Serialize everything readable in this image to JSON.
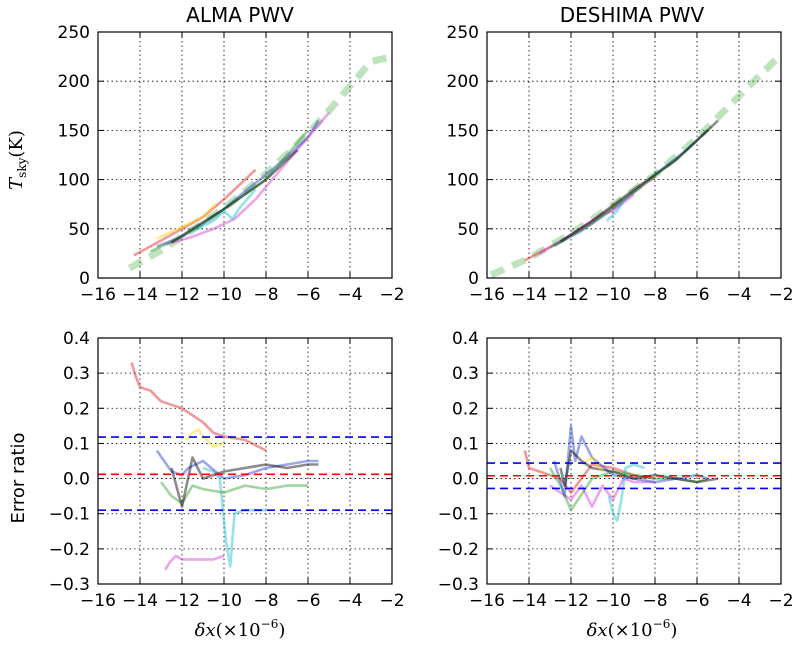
{
  "chart_data": [
    {
      "type": "line",
      "panel": "top-left",
      "title": "ALMA PWV",
      "ylabel": "T_sky (K)",
      "xlabel": "",
      "xlim": [
        -16,
        -2
      ],
      "ylim": [
        0,
        250
      ],
      "xticks": [
        "−16",
        "−14",
        "−12",
        "−10",
        "−8",
        "−6",
        "−4",
        "−2"
      ],
      "yticks": [
        "0",
        "50",
        "100",
        "150",
        "200",
        "250"
      ],
      "grid": true,
      "reference_curve": {
        "color": "#2ca02c",
        "style": "dashed",
        "x": [
          -14.5,
          -13,
          -12,
          -11,
          -10,
          -9,
          -8,
          -7,
          -6,
          -5,
          -4,
          -3,
          -2
        ],
        "y": [
          10,
          28,
          42,
          56,
          71,
          88,
          106,
          126,
          147,
          170,
          195,
          220,
          225
        ]
      },
      "series": [
        {
          "color": "#e31a1c",
          "x": [
            -14.3,
            -13,
            -12,
            -11,
            -10,
            -8.5
          ],
          "y": [
            23,
            38,
            50,
            62,
            80,
            110
          ]
        },
        {
          "color": "#1f3dcc",
          "x": [
            -13.2,
            -12,
            -11,
            -10,
            -9,
            -8,
            -7,
            -6,
            -5.5
          ],
          "y": [
            32,
            42,
            55,
            70,
            88,
            105,
            123,
            143,
            160
          ]
        },
        {
          "color": "#d438d4",
          "x": [
            -12.8,
            -11.5,
            -10.5,
            -9.5,
            -8.5,
            -7,
            -5
          ],
          "y": [
            34,
            42,
            50,
            60,
            80,
            118,
            168
          ]
        },
        {
          "color": "#17becf",
          "x": [
            -11.5,
            -10.5,
            -10,
            -9.6,
            -9.3,
            -8.5
          ],
          "y": [
            48,
            58,
            68,
            60,
            70,
            90
          ]
        },
        {
          "color": "#ffd700",
          "x": [
            -13.2,
            -12,
            -11,
            -10.4
          ],
          "y": [
            40,
            52,
            62,
            75
          ]
        },
        {
          "color": "#2ca02c",
          "x": [
            -13.5,
            -12,
            -10,
            -8,
            -6
          ],
          "y": [
            27,
            42,
            70,
            100,
            150
          ]
        },
        {
          "color": "#000000",
          "x": [
            -12.5,
            -11.5,
            -10,
            -8,
            -6.5
          ],
          "y": [
            36,
            50,
            70,
            100,
            130
          ]
        }
      ]
    },
    {
      "type": "line",
      "panel": "top-right",
      "title": "DESHIMA PWV",
      "xlabel": "",
      "ylabel": "",
      "xlim": [
        -16,
        -2
      ],
      "ylim": [
        0,
        250
      ],
      "xticks": [
        "−16",
        "−14",
        "−12",
        "−10",
        "−8",
        "−6",
        "−4",
        "−2"
      ],
      "yticks": [
        "0",
        "50",
        "100",
        "150",
        "200",
        "250"
      ],
      "grid": true,
      "reference_curve": {
        "color": "#2ca02c",
        "style": "dashed",
        "x": [
          -15.8,
          -14,
          -12,
          -10,
          -8,
          -6,
          -4,
          -2
        ],
        "y": [
          3,
          20,
          45,
          74,
          105,
          142,
          185,
          227
        ]
      },
      "series": [
        {
          "color": "#e31a1c",
          "x": [
            -14.2,
            -12.5,
            -11,
            -9.5,
            -8
          ],
          "y": [
            18,
            37,
            57,
            80,
            103
          ]
        },
        {
          "color": "#1f3dcc",
          "x": [
            -12.8,
            -11.5,
            -10,
            -8,
            -6.5,
            -5.5
          ],
          "y": [
            33,
            48,
            70,
            105,
            130,
            150
          ]
        },
        {
          "color": "#d438d4",
          "x": [
            -13.5,
            -12,
            -10.5,
            -10,
            -9
          ],
          "y": [
            25,
            44,
            65,
            68,
            85
          ]
        },
        {
          "color": "#17becf",
          "x": [
            -10.3,
            -9.8,
            -9.4
          ],
          "y": [
            58,
            68,
            82
          ]
        },
        {
          "color": "#2ca02c",
          "x": [
            -13,
            -11,
            -9,
            -7,
            -5.5
          ],
          "y": [
            31,
            55,
            88,
            120,
            150
          ]
        },
        {
          "color": "#000000",
          "x": [
            -12.5,
            -11,
            -9,
            -7,
            -5
          ],
          "y": [
            37,
            58,
            90,
            120,
            160
          ]
        }
      ]
    },
    {
      "type": "line",
      "panel": "bottom-left",
      "title": "",
      "ylabel": "Error ratio",
      "xlabel": "δx (×10⁻⁶)",
      "xlim": [
        -16,
        -2
      ],
      "ylim": [
        -0.3,
        0.4
      ],
      "xticks": [
        "−16",
        "−14",
        "−12",
        "−10",
        "−8",
        "−6",
        "−4",
        "−2"
      ],
      "yticks": [
        "−0.3",
        "−0.2",
        "−0.1",
        "0.0",
        "0.1",
        "0.2",
        "0.3",
        "0.4"
      ],
      "grid": true,
      "hlines": [
        {
          "y": 0.118,
          "color": "#0000ff"
        },
        {
          "y": 0.012,
          "color": "#ff0000"
        },
        {
          "y": -0.09,
          "color": "#0000ff"
        }
      ],
      "series": [
        {
          "color": "#e31a1c",
          "x": [
            -14.4,
            -14.2,
            -14,
            -13.5,
            -13,
            -12.5,
            -12,
            -11.5,
            -11,
            -10.5,
            -10,
            -9,
            -8
          ],
          "y": [
            0.33,
            0.29,
            0.26,
            0.25,
            0.22,
            0.21,
            0.2,
            0.18,
            0.16,
            0.13,
            0.12,
            0.11,
            0.08
          ]
        },
        {
          "color": "#ffd700",
          "x": [
            -11.8,
            -11.5,
            -11.2,
            -11,
            -10.5,
            -10
          ],
          "y": [
            0.11,
            0.13,
            0.14,
            0.12,
            0.09,
            0.1
          ]
        },
        {
          "color": "#d438d4",
          "x": [
            -12.8,
            -12.6,
            -12.3,
            -12,
            -11,
            -10.5,
            -10
          ],
          "y": [
            -0.26,
            -0.24,
            -0.22,
            -0.23,
            -0.23,
            -0.23,
            -0.22
          ]
        },
        {
          "color": "#17becf",
          "x": [
            -11,
            -10.5,
            -10.2,
            -9.9,
            -9.7,
            -9.5,
            -9,
            -8
          ],
          "y": [
            0.03,
            0.02,
            0.0,
            -0.18,
            -0.25,
            -0.1,
            -0.09,
            -0.09
          ]
        },
        {
          "color": "#2ca02c",
          "x": [
            -13,
            -12.5,
            -12,
            -11.5,
            -11,
            -10,
            -9,
            -8,
            -7,
            -6
          ],
          "y": [
            -0.01,
            -0.05,
            -0.07,
            -0.02,
            -0.03,
            -0.04,
            -0.02,
            -0.03,
            -0.02,
            -0.02
          ]
        },
        {
          "color": "#1f3dcc",
          "x": [
            -13.2,
            -12.5,
            -12,
            -11.7,
            -11,
            -10,
            -9,
            -8,
            -7,
            -6,
            -5.5
          ],
          "y": [
            0.08,
            0.02,
            0.01,
            0.03,
            0.05,
            0.0,
            0.01,
            0.03,
            0.04,
            0.05,
            0.05
          ]
        },
        {
          "color": "#000000",
          "x": [
            -12.5,
            -12,
            -11.5,
            -11,
            -10,
            -9,
            -8,
            -7,
            -6,
            -5.5
          ],
          "y": [
            0.03,
            -0.08,
            0.06,
            0.0,
            0.02,
            0.03,
            0.04,
            0.03,
            0.04,
            0.04
          ]
        }
      ]
    },
    {
      "type": "line",
      "panel": "bottom-right",
      "title": "",
      "ylabel": "",
      "xlabel": "δx (×10⁻⁶)",
      "xlim": [
        -16,
        -2
      ],
      "ylim": [
        -0.3,
        0.4
      ],
      "xticks": [
        "−16",
        "−14",
        "−12",
        "−10",
        "−8",
        "−6",
        "−4",
        "−2"
      ],
      "yticks": [
        "−0.3",
        "−0.2",
        "−0.1",
        "0.0",
        "0.1",
        "0.2",
        "0.3",
        "0.4"
      ],
      "grid": true,
      "hlines": [
        {
          "y": 0.044,
          "color": "#0000ff"
        },
        {
          "y": 0.008,
          "color": "#ff0000"
        },
        {
          "y": -0.028,
          "color": "#0000ff"
        }
      ],
      "series": [
        {
          "color": "#e31a1c",
          "x": [
            -14.2,
            -14,
            -13.5,
            -13,
            -12.5,
            -12,
            -11,
            -10,
            -9,
            -8
          ],
          "y": [
            0.08,
            0.03,
            0.02,
            0.01,
            0.0,
            -0.04,
            0.04,
            0.03,
            0.01,
            0.0
          ]
        },
        {
          "color": "#d438d4",
          "x": [
            -13,
            -12.5,
            -12,
            -11.5,
            -11,
            -10.5,
            -10,
            -9.5,
            -9,
            -8
          ],
          "y": [
            -0.02,
            -0.04,
            -0.06,
            -0.02,
            -0.08,
            -0.02,
            -0.06,
            0.0,
            -0.01,
            -0.01
          ]
        },
        {
          "color": "#17becf",
          "x": [
            -10.2,
            -10,
            -9.8,
            -9.6,
            -9.4,
            -9,
            -8.5
          ],
          "y": [
            -0.05,
            -0.1,
            -0.12,
            -0.06,
            0.03,
            0.04,
            0.03
          ]
        },
        {
          "color": "#2ca02c",
          "x": [
            -13,
            -12.5,
            -12,
            -11,
            -10,
            -9,
            -8,
            -7,
            -6,
            -5.5
          ],
          "y": [
            0.03,
            -0.02,
            -0.09,
            0.0,
            0.02,
            0.01,
            0.0,
            0.0,
            -0.01,
            0.0
          ]
        },
        {
          "color": "#1f3dcc",
          "x": [
            -12.8,
            -12.3,
            -12,
            -11.8,
            -11.5,
            -11,
            -10,
            -9,
            -8,
            -7,
            -6,
            -5.5
          ],
          "y": [
            0.05,
            -0.05,
            0.15,
            0.05,
            0.12,
            0.06,
            0.01,
            0.0,
            -0.01,
            0.0,
            0.01,
            0.0
          ]
        },
        {
          "color": "#000000",
          "x": [
            -12.5,
            -12.3,
            -12,
            -11.5,
            -11,
            -10,
            -9,
            -8,
            -7,
            -6,
            -5
          ],
          "y": [
            0.03,
            -0.02,
            0.08,
            0.05,
            0.03,
            0.02,
            0.0,
            0.01,
            0.0,
            -0.01,
            0.0
          ]
        },
        {
          "color": "#ffd700",
          "x": [
            -11.5,
            -11,
            -10.5
          ],
          "y": [
            0.04,
            0.06,
            0.02
          ]
        }
      ]
    }
  ],
  "labels": {
    "title_left": "ALMA PWV",
    "title_right": "DESHIMA PWV",
    "ylabel_top_var": "T",
    "ylabel_top_sub": "sky",
    "ylabel_top_unit": "(K)",
    "ylabel_bottom": "Error ratio",
    "xlabel_var": "δx",
    "xlabel_base": "(×10",
    "xlabel_exp": "−6",
    "xlabel_close": ")"
  }
}
